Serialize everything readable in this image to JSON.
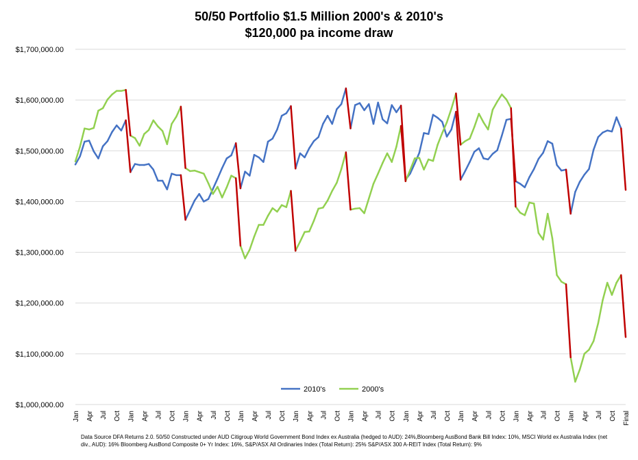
{
  "chart_data": {
    "type": "line",
    "title": "50/50 Portfolio $1.5 Million 2000's & 2010's",
    "subtitle": "$120,000 pa income draw",
    "ylim": [
      1000000,
      1700000
    ],
    "y_ticks": [
      "$1,000,000.00",
      "$1,100,000.00",
      "$1,200,000.00",
      "$1,300,000.00",
      "$1,400,000.00",
      "$1,500,000.00",
      "$1,600,000.00",
      "$1,700,000.00"
    ],
    "y_tick_values": [
      1000000,
      1100000,
      1200000,
      1300000,
      1400000,
      1500000,
      1600000,
      1700000
    ],
    "x_tick_labels": [
      "Jan",
      "Apr",
      "Jul",
      "Oct",
      "Jan",
      "Apr",
      "Jul",
      "Oct",
      "Jan",
      "Apr",
      "Jul",
      "Oct",
      "Jan",
      "Apr",
      "Jul",
      "Oct",
      "Jan",
      "Apr",
      "Jul",
      "Oct",
      "Jan",
      "Apr",
      "Jul",
      "Oct",
      "Jan",
      "Apr",
      "Jul",
      "Oct",
      "Jan",
      "Apr",
      "Jul",
      "Oct",
      "Jan",
      "Apr",
      "Jul",
      "Oct",
      "Jan",
      "Apr",
      "Jul",
      "Oct",
      "Final"
    ],
    "grid": true,
    "legend_position": "bottom",
    "series": [
      {
        "name": "2010's",
        "color": "#4472C4",
        "values": [
          1473000,
          1489000,
          1518000,
          1520000,
          1499000,
          1485000,
          1509000,
          1519000,
          1537000,
          1550000,
          1540000,
          1560000,
          1458000,
          1474000,
          1472000,
          1472000,
          1474000,
          1463000,
          1441000,
          1441000,
          1424000,
          1455000,
          1452000,
          1452000,
          1364000,
          1383000,
          1402000,
          1415000,
          1400000,
          1405000,
          1425000,
          1445000,
          1466000,
          1485000,
          1491000,
          1515000,
          1426000,
          1459000,
          1451000,
          1492000,
          1487000,
          1478000,
          1518000,
          1524000,
          1542000,
          1569000,
          1574000,
          1588000,
          1465000,
          1495000,
          1487000,
          1505000,
          1519000,
          1527000,
          1553000,
          1569000,
          1553000,
          1582000,
          1592000,
          1623000,
          1544000,
          1590000,
          1594000,
          1580000,
          1592000,
          1553000,
          1595000,
          1562000,
          1554000,
          1590000,
          1576000,
          1589000,
          1443000,
          1455000,
          1475000,
          1496000,
          1535000,
          1533000,
          1571000,
          1565000,
          1557000,
          1528000,
          1542000,
          1577000,
          1443000,
          1460000,
          1478000,
          1498000,
          1505000,
          1485000,
          1483000,
          1494000,
          1501000,
          1530000,
          1561000,
          1563000,
          1440000,
          1435000,
          1428000,
          1448000,
          1464000,
          1484000,
          1496000,
          1519000,
          1514000,
          1472000,
          1461000,
          1463000,
          1376000,
          1419000,
          1439000,
          1453000,
          1464000,
          1502000,
          1527000,
          1536000,
          1540000,
          1538000,
          1566000,
          1544000,
          1423000
        ]
      },
      {
        "name": "2000's",
        "color": "#92D050",
        "values": [
          1479000,
          1508000,
          1544000,
          1542000,
          1545000,
          1579000,
          1584000,
          1601000,
          1611000,
          1618000,
          1618000,
          1620000,
          1530000,
          1525000,
          1510000,
          1533000,
          1541000,
          1560000,
          1548000,
          1539000,
          1513000,
          1553000,
          1567000,
          1587000,
          1466000,
          1460000,
          1461000,
          1458000,
          1455000,
          1436000,
          1415000,
          1429000,
          1408000,
          1428000,
          1451000,
          1446000,
          1313000,
          1288000,
          1305000,
          1331000,
          1354000,
          1354000,
          1372000,
          1387000,
          1380000,
          1393000,
          1389000,
          1421000,
          1303000,
          1321000,
          1340000,
          1341000,
          1362000,
          1386000,
          1388000,
          1402000,
          1421000,
          1437000,
          1464000,
          1497000,
          1384000,
          1386000,
          1387000,
          1377000,
          1406000,
          1435000,
          1455000,
          1476000,
          1495000,
          1478000,
          1508000,
          1549000,
          1440000,
          1462000,
          1485000,
          1486000,
          1463000,
          1483000,
          1480000,
          1512000,
          1535000,
          1556000,
          1583000,
          1613000,
          1512000,
          1519000,
          1524000,
          1547000,
          1573000,
          1556000,
          1542000,
          1581000,
          1597000,
          1611000,
          1601000,
          1584000,
          1390000,
          1378000,
          1373000,
          1398000,
          1396000,
          1338000,
          1325000,
          1376000,
          1328000,
          1255000,
          1242000,
          1237000,
          1093000,
          1045000,
          1069000,
          1100000,
          1108000,
          1125000,
          1160000,
          1206000,
          1240000,
          1216000,
          1240000,
          1255000,
          1133000
        ]
      }
    ],
    "annotation_color": "#C00000"
  },
  "footnote": "Data Source DFA Returns 2.0. 50/50 Constructed under AUD Citigroup World Government Bond Index ex Australia (hedged to AUD): 24%,Bloomberg AusBond Bank Bill Index: 10%, MSCI World ex Australia Index (net div., AUD): 16% Bloomberg AusBond Composite 0+ Yr Index: 16%, S&P/ASX All Ordinaries Index (Total Return): 25% S&P/ASX 300 A-REIT Index (Total Return): 9%"
}
